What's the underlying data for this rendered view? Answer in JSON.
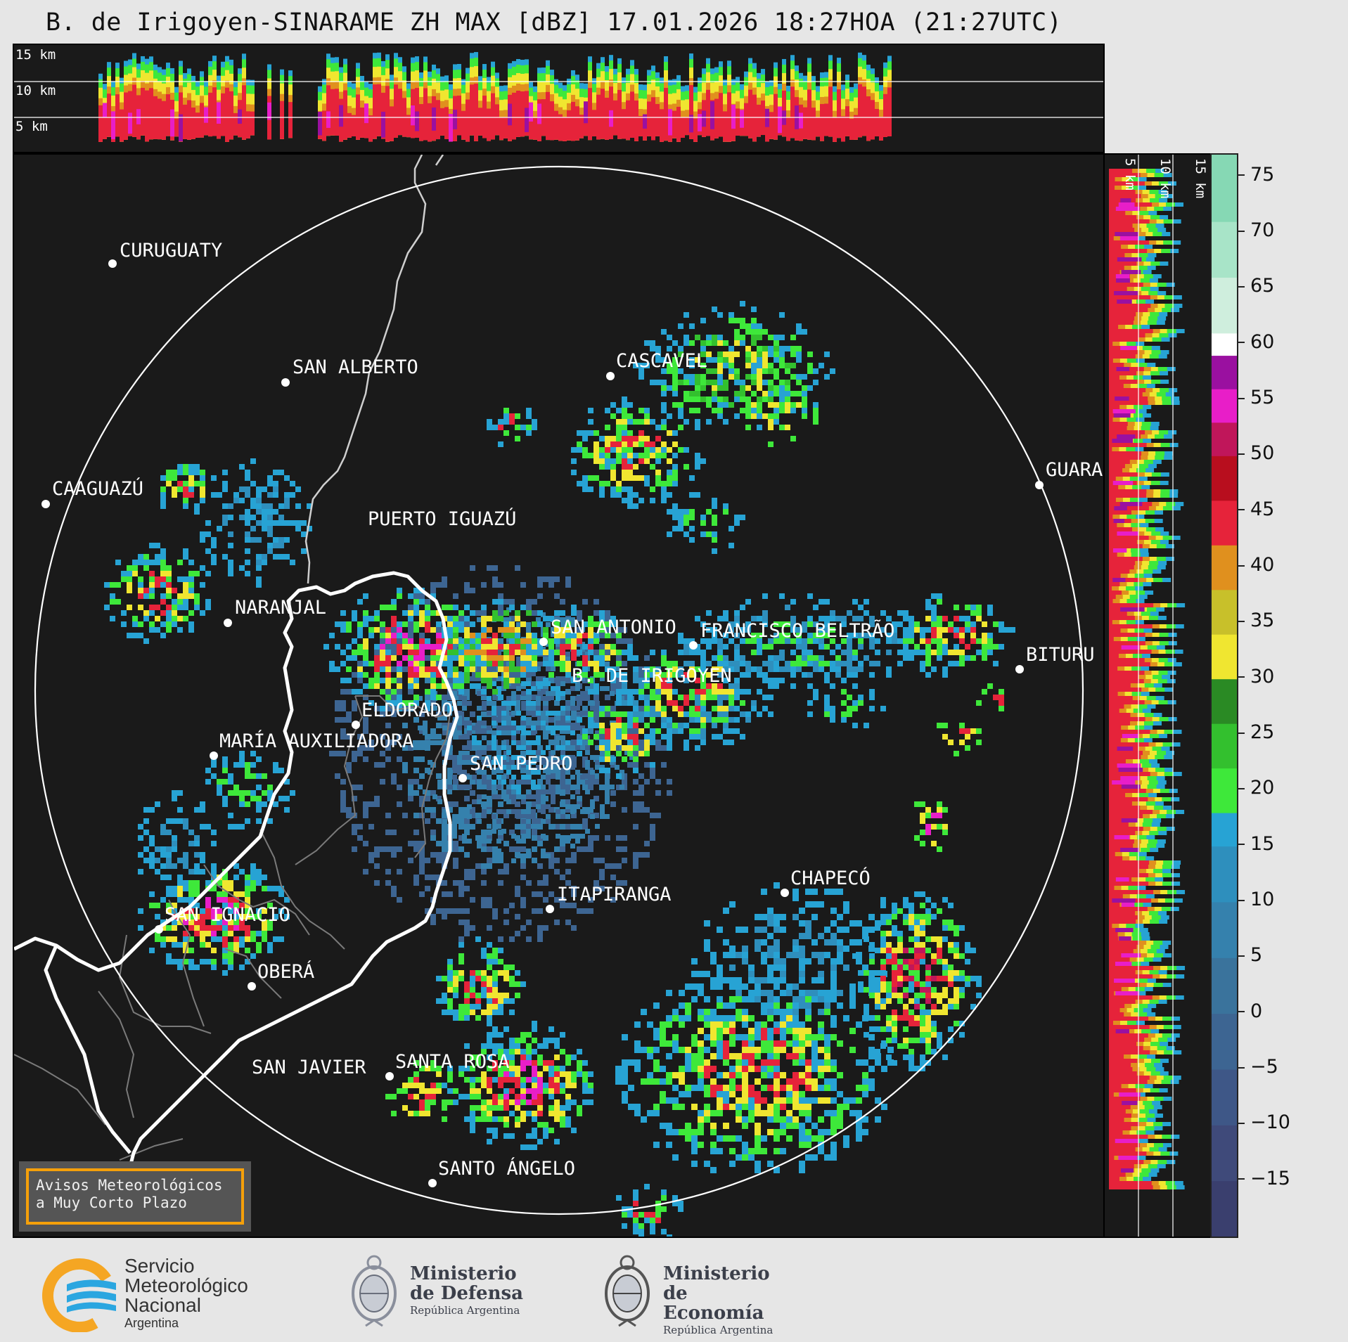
{
  "title": "B. de Irigoyen-SINARAME ZH MAX [dBZ] 17.01.2026 18:27HOA (21:27UTC)",
  "top_profile": {
    "height_labels": [
      "15 km",
      "10 km",
      "5 km"
    ]
  },
  "side_profile": {
    "height_labels": [
      "5 km",
      "10 km",
      "15 km"
    ]
  },
  "map_labels": [
    {
      "id": "curuguaty",
      "text": "CURUGUATY"
    },
    {
      "id": "san-alberto",
      "text": "SAN ALBERTO"
    },
    {
      "id": "cascavel",
      "text": "CASCAVEL"
    },
    {
      "id": "caaguazu",
      "text": "CAAGUAZÚ"
    },
    {
      "id": "guarapuava",
      "text": "GUARA"
    },
    {
      "id": "puerto-iguazu",
      "text": "PUERTO IGUAZÚ"
    },
    {
      "id": "naranjal",
      "text": "NARANJAL"
    },
    {
      "id": "san-antonio",
      "text": "SAN ANTONIO"
    },
    {
      "id": "francisco-beltrao",
      "text": "FRANCISCO BELTRÃO"
    },
    {
      "id": "bituruna",
      "text": "BITURU"
    },
    {
      "id": "b-de-irigoyen",
      "text": "B. DE IRIGOYEN"
    },
    {
      "id": "eldorado",
      "text": "ELDORADO"
    },
    {
      "id": "maria-auxiliadora",
      "text": "MARÍA AUXILIADORA"
    },
    {
      "id": "san-pedro",
      "text": "SAN PEDRO"
    },
    {
      "id": "itapiranga",
      "text": "ITAPIRANGA"
    },
    {
      "id": "chapeco",
      "text": "CHAPECÓ"
    },
    {
      "id": "san-ignacio",
      "text": "SAN IGNACIO"
    },
    {
      "id": "obera",
      "text": "OBERÁ"
    },
    {
      "id": "san-javier",
      "text": "SAN JAVIER"
    },
    {
      "id": "santa-rosa",
      "text": "SANTA ROSA"
    },
    {
      "id": "santo-angelo",
      "text": "SANTO ÁNGELO"
    }
  ],
  "colorbar": {
    "unit": "dBZ",
    "ticks": [
      "75",
      "70",
      "65",
      "60",
      "55",
      "50",
      "45",
      "40",
      "35",
      "30",
      "25",
      "20",
      "15",
      "10",
      "5",
      "0",
      "−5",
      "−10",
      "−15"
    ],
    "bands": [
      {
        "from": -20,
        "to": -15,
        "color": "#3a3f6e"
      },
      {
        "from": -15,
        "to": -10,
        "color": "#3f4a7a"
      },
      {
        "from": -10,
        "to": -5,
        "color": "#3e5787"
      },
      {
        "from": -5,
        "to": 0,
        "color": "#3d6592"
      },
      {
        "from": 0,
        "to": 5,
        "color": "#3a739c"
      },
      {
        "from": 5,
        "to": 10,
        "color": "#3581ad"
      },
      {
        "from": 10,
        "to": 15,
        "color": "#2e8fbd"
      },
      {
        "from": 15,
        "to": 18,
        "color": "#27a3d4"
      },
      {
        "from": 18,
        "to": 22,
        "color": "#3ee83a"
      },
      {
        "from": 22,
        "to": 26,
        "color": "#33c02e"
      },
      {
        "from": 26,
        "to": 30,
        "color": "#2a8a24"
      },
      {
        "from": 30,
        "to": 34,
        "color": "#f0e630"
      },
      {
        "from": 34,
        "to": 38,
        "color": "#c8c02a"
      },
      {
        "from": 38,
        "to": 42,
        "color": "#e0901e"
      },
      {
        "from": 42,
        "to": 46,
        "color": "#e6233a"
      },
      {
        "from": 46,
        "to": 50,
        "color": "#b80e1e"
      },
      {
        "from": 50,
        "to": 53,
        "color": "#c0165a"
      },
      {
        "from": 53,
        "to": 56,
        "color": "#e81ec8"
      },
      {
        "from": 56,
        "to": 59,
        "color": "#9a10a0"
      },
      {
        "from": 59,
        "to": 61,
        "color": "#ffffff"
      },
      {
        "from": 61,
        "to": 66,
        "color": "#cfeedd"
      },
      {
        "from": 66,
        "to": 71,
        "color": "#a8e4c8"
      },
      {
        "from": 71,
        "to": 77,
        "color": "#86d8b4"
      }
    ]
  },
  "notice": {
    "text": "Avisos Meteorológicos\na Muy Corto Plazo"
  },
  "footer": {
    "smn": {
      "line1": "Servicio",
      "line2": "Meteorológico",
      "line3": "Nacional",
      "line4": "Argentina"
    },
    "defensa": {
      "line1": "Ministerio",
      "line2": "de Defensa",
      "line3": "República Argentina"
    },
    "economia": {
      "line1": "Ministerio",
      "line2": "de Economía",
      "line3": "República Argentina"
    }
  },
  "colors": {
    "background": "#1a1a1a",
    "ring": "#ffffff",
    "notice_border": "#f5a00a",
    "smn_blue": "#2aa6e0",
    "smn_orange": "#f5a623"
  }
}
